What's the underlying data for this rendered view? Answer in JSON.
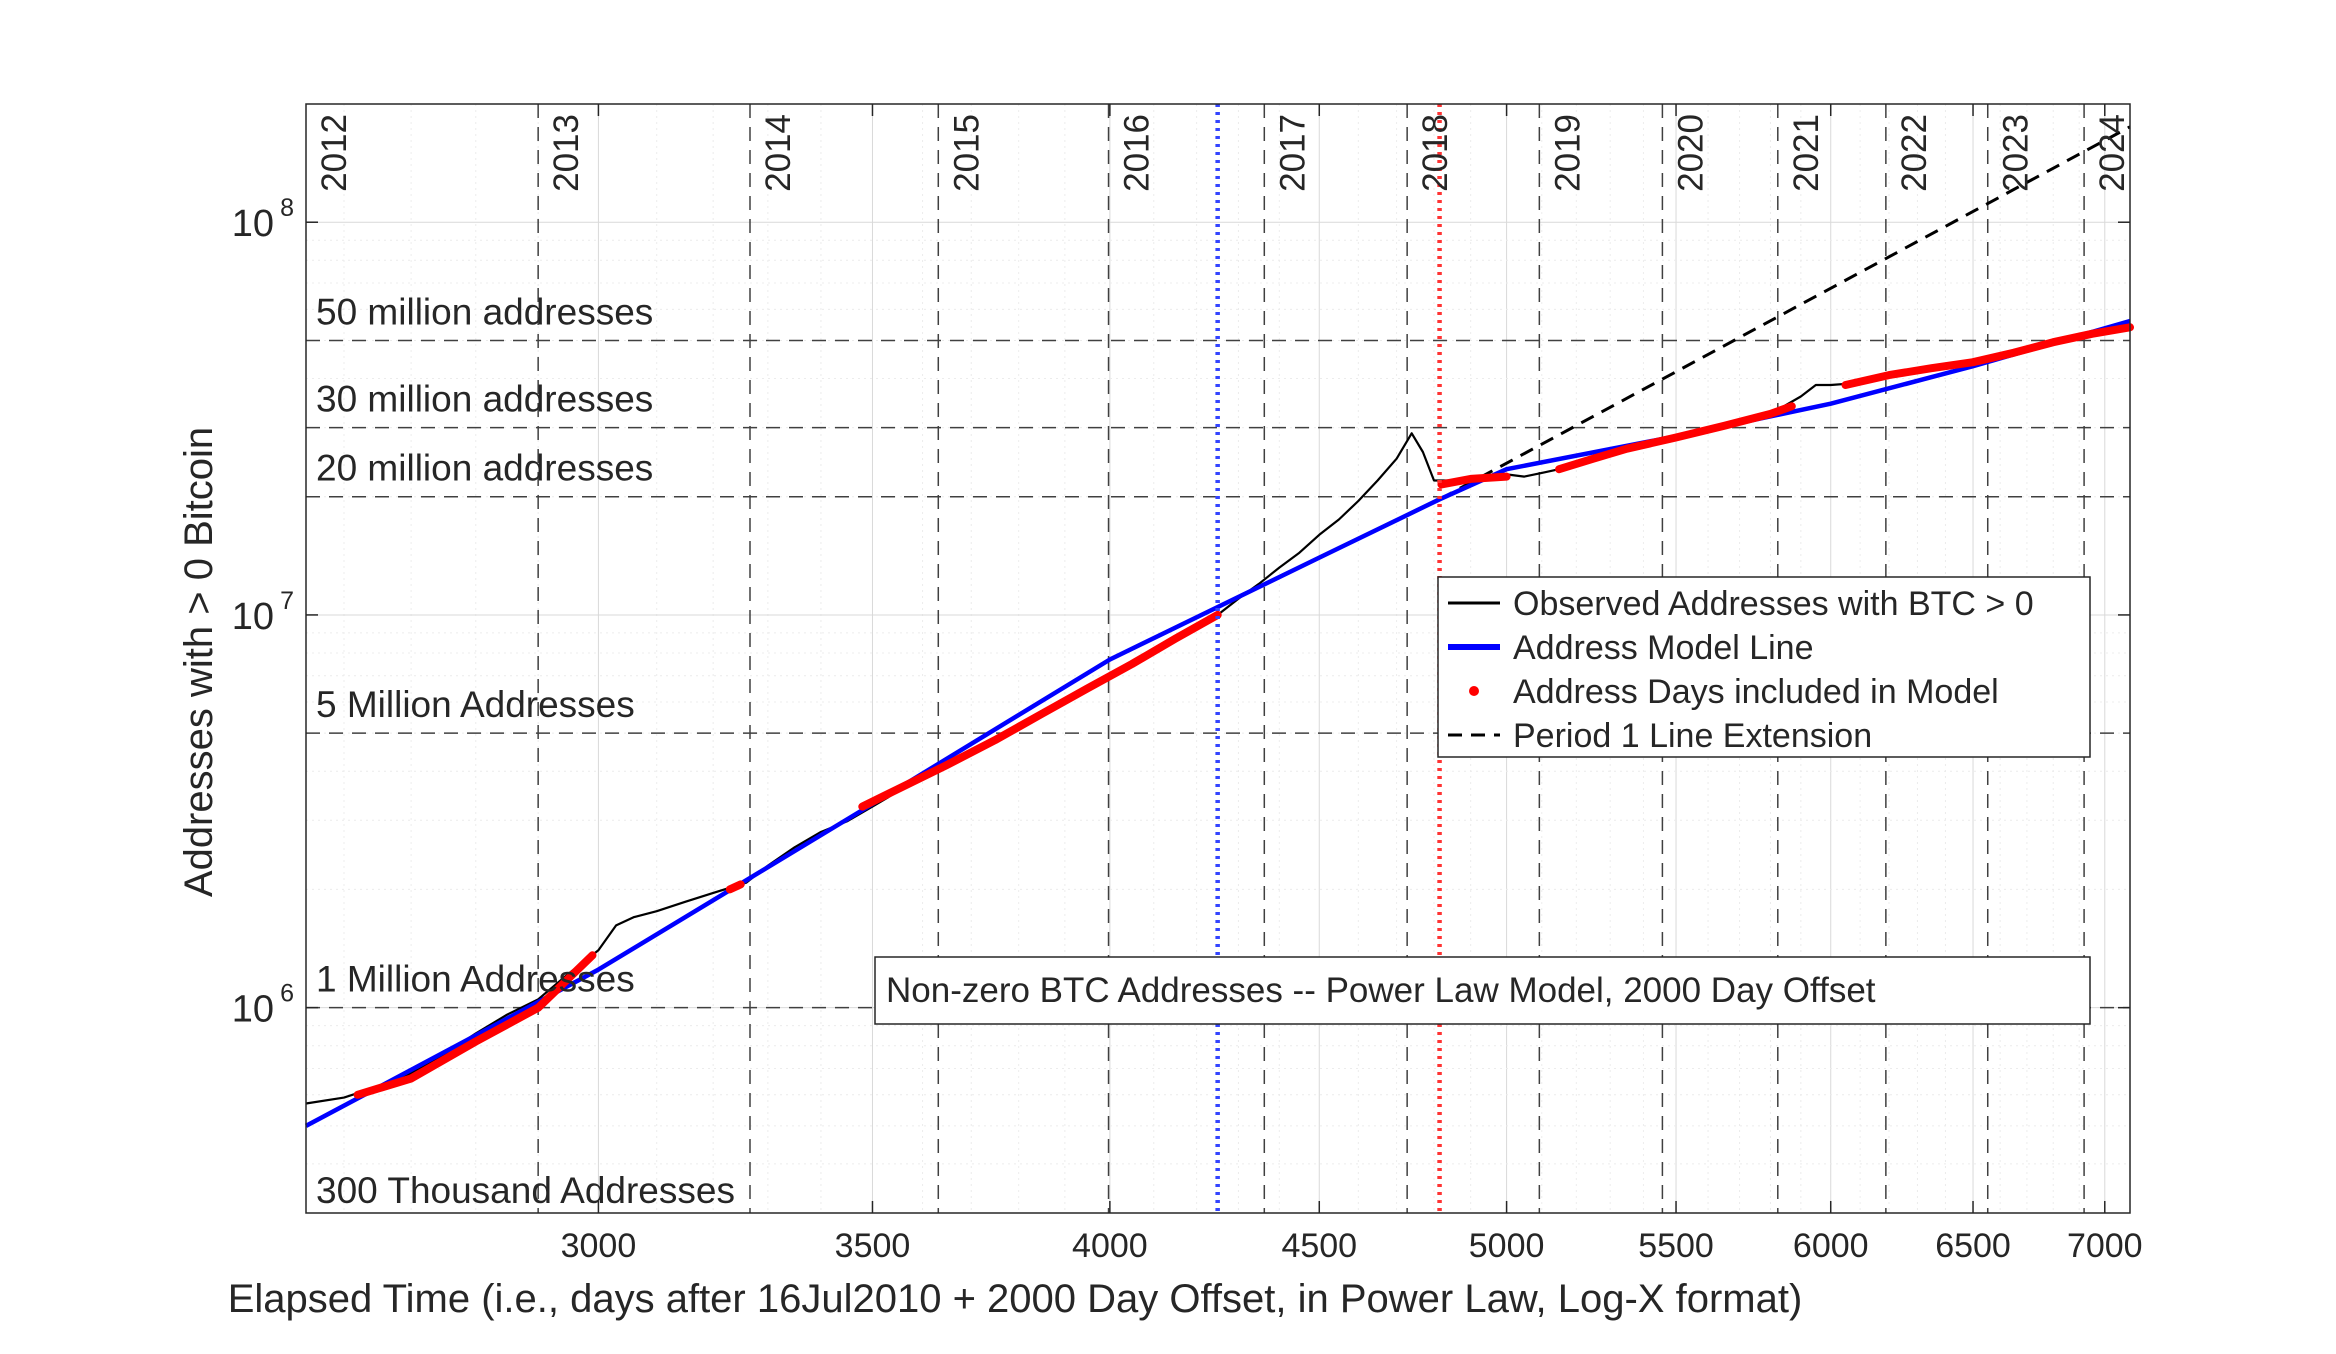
{
  "chart_data": {
    "type": "line",
    "title": "Non-zero BTC Addresses -- Power Law Model, 2000 Day Offset",
    "xlabel": "Elapsed Time (i.e., days after 16Jul2010 + 2000 Day Offset, in Power Law, Log-X format)",
    "ylabel": "Addresses with > 0 Bitcoin",
    "x_scale": "log",
    "y_scale": "log",
    "xlim": [
      2545,
      7100
    ],
    "ylim": [
      300000,
      200000000
    ],
    "grid": true,
    "legend_position": "inside-right",
    "x_ticks": [
      3000,
      3500,
      4000,
      4500,
      5000,
      5500,
      6000,
      6500,
      7000
    ],
    "y_ticks": [
      {
        "value": 1000000,
        "base": "10",
        "exp": "6"
      },
      {
        "value": 10000000,
        "base": "10",
        "exp": "7"
      },
      {
        "value": 100000000,
        "base": "10",
        "exp": "8"
      }
    ],
    "year_markers": [
      {
        "label": "2012",
        "x": 2545
      },
      {
        "label": "2013",
        "x": 2900
      },
      {
        "label": "2014",
        "x": 3267
      },
      {
        "label": "2015",
        "x": 3632
      },
      {
        "label": "2016",
        "x": 3997
      },
      {
        "label": "2017",
        "x": 4363
      },
      {
        "label": "2018",
        "x": 4728
      },
      {
        "label": "2019",
        "x": 5093
      },
      {
        "label": "2020",
        "x": 5458
      },
      {
        "label": "2021",
        "x": 5824
      },
      {
        "label": "2022",
        "x": 6189
      },
      {
        "label": "2023",
        "x": 6554
      },
      {
        "label": "2024",
        "x": 6919
      }
    ],
    "vlines": [
      {
        "name": "blue-dotted",
        "x": 4250,
        "color": "#3344ff"
      },
      {
        "name": "red-dotted",
        "x": 4815,
        "color": "#ff3333"
      }
    ],
    "hlines": [
      {
        "value": 50000000,
        "label": "50 million addresses"
      },
      {
        "value": 30000000,
        "label": "30 million addresses"
      },
      {
        "value": 20000000,
        "label": "20 million addresses"
      },
      {
        "value": 5000000,
        "label": "5 Million Addresses"
      },
      {
        "value": 1000000,
        "label": "1 Million Addresses"
      },
      {
        "value": 300000,
        "label": "300 Thousand Addresses"
      }
    ],
    "series": [
      {
        "name": "Observed Addresses with BTC > 0",
        "color": "#000000",
        "points": [
          [
            2545,
            570000
          ],
          [
            2600,
            590000
          ],
          [
            2650,
            630000
          ],
          [
            2700,
            680000
          ],
          [
            2750,
            760000
          ],
          [
            2800,
            860000
          ],
          [
            2850,
            960000
          ],
          [
            2900,
            1050000
          ],
          [
            2950,
            1220000
          ],
          [
            3000,
            1400000
          ],
          [
            3030,
            1620000
          ],
          [
            3060,
            1700000
          ],
          [
            3100,
            1760000
          ],
          [
            3150,
            1860000
          ],
          [
            3200,
            1960000
          ],
          [
            3260,
            2080000
          ],
          [
            3300,
            2300000
          ],
          [
            3350,
            2560000
          ],
          [
            3400,
            2800000
          ],
          [
            3450,
            2980000
          ],
          [
            3500,
            3250000
          ],
          [
            3550,
            3550000
          ],
          [
            3600,
            3850000
          ],
          [
            3650,
            4150000
          ],
          [
            3700,
            4500000
          ],
          [
            3750,
            4850000
          ],
          [
            3800,
            5200000
          ],
          [
            3850,
            5550000
          ],
          [
            3900,
            5950000
          ],
          [
            3950,
            6400000
          ],
          [
            4000,
            6950000
          ],
          [
            4050,
            7450000
          ],
          [
            4100,
            7950000
          ],
          [
            4150,
            8550000
          ],
          [
            4200,
            9300000
          ],
          [
            4250,
            10000000
          ],
          [
            4300,
            11000000
          ],
          [
            4350,
            12000000
          ],
          [
            4400,
            13200000
          ],
          [
            4450,
            14400000
          ],
          [
            4500,
            16000000
          ],
          [
            4550,
            17500000
          ],
          [
            4600,
            19500000
          ],
          [
            4650,
            22000000
          ],
          [
            4700,
            25000000
          ],
          [
            4740,
            29000000
          ],
          [
            4770,
            26000000
          ],
          [
            4800,
            22000000
          ],
          [
            4850,
            22000000
          ],
          [
            4900,
            22000000
          ],
          [
            4950,
            22500000
          ],
          [
            5000,
            22800000
          ],
          [
            5050,
            22500000
          ],
          [
            5100,
            23000000
          ],
          [
            5150,
            23500000
          ],
          [
            5200,
            24200000
          ],
          [
            5300,
            25500000
          ],
          [
            5400,
            27000000
          ],
          [
            5500,
            28300000
          ],
          [
            5600,
            29500000
          ],
          [
            5700,
            31000000
          ],
          [
            5800,
            32500000
          ],
          [
            5900,
            36000000
          ],
          [
            5950,
            38500000
          ],
          [
            6000,
            38500000
          ],
          [
            6100,
            39000000
          ],
          [
            6200,
            40500000
          ],
          [
            6300,
            42000000
          ],
          [
            6400,
            43000000
          ],
          [
            6500,
            44000000
          ],
          [
            6600,
            45500000
          ],
          [
            6700,
            47500000
          ],
          [
            6800,
            49500000
          ],
          [
            6900,
            51500000
          ],
          [
            7000,
            53000000
          ],
          [
            7100,
            54500000
          ]
        ]
      },
      {
        "name": "Address Model Line",
        "color": "#0000ff",
        "points": [
          [
            2545,
            500000
          ],
          [
            2800,
            850000
          ],
          [
            3000,
            1250000
          ],
          [
            3500,
            3300000
          ],
          [
            4000,
            7700000
          ],
          [
            4500,
            14000000
          ],
          [
            4815,
            19700000
          ],
          [
            5000,
            23500000
          ],
          [
            5500,
            28500000
          ],
          [
            6000,
            34500000
          ],
          [
            6500,
            43000000
          ],
          [
            7100,
            56000000
          ]
        ]
      },
      {
        "name": "Address Days included in Model",
        "color": "#ff0000",
        "segments": [
          [
            [
              2620,
              600000
            ],
            [
              2700,
              660000
            ],
            [
              2800,
              820000
            ],
            [
              2900,
              1000000
            ],
            [
              2990,
              1360000
            ]
          ],
          [
            [
              3230,
              2000000
            ],
            [
              3250,
              2060000
            ]
          ],
          [
            [
              3480,
              3250000
            ],
            [
              3550,
              3600000
            ],
            [
              3650,
              4150000
            ],
            [
              3750,
              4800000
            ],
            [
              3850,
              5600000
            ],
            [
              3950,
              6500000
            ],
            [
              4050,
              7500000
            ],
            [
              4150,
              8700000
            ],
            [
              4250,
              10000000
            ]
          ],
          [
            [
              4820,
              21500000
            ],
            [
              4900,
              22200000
            ],
            [
              5000,
              22500000
            ]
          ],
          [
            [
              5150,
              23500000
            ],
            [
              5250,
              25000000
            ],
            [
              5350,
              26500000
            ],
            [
              5500,
              28300000
            ],
            [
              5650,
              30300000
            ],
            [
              5800,
              32500000
            ],
            [
              5870,
              34000000
            ]
          ],
          [
            [
              6050,
              38500000
            ],
            [
              6200,
              40800000
            ],
            [
              6350,
              42500000
            ],
            [
              6500,
              44000000
            ],
            [
              6650,
              46500000
            ],
            [
              6800,
              49500000
            ],
            [
              6950,
              52000000
            ],
            [
              7100,
              54000000
            ]
          ]
        ]
      },
      {
        "name": "Period 1 Line Extension",
        "color": "#000000",
        "points": [
          [
            4815,
            19700000
          ],
          [
            7100,
            175000000
          ]
        ]
      }
    ]
  },
  "legend": {
    "observed": "Observed Addresses with BTC > 0",
    "model": "Address Model Line",
    "included": "Address Days included in Model",
    "extension": "Period 1 Line Extension"
  },
  "colors": {
    "observed": "#000000",
    "model": "#0000ff",
    "included": "#ff0000",
    "extension": "#000000",
    "axis": "#262626"
  }
}
